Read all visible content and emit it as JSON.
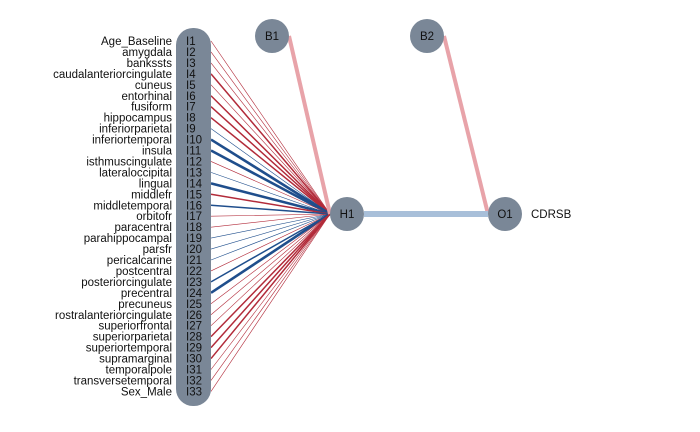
{
  "colors": {
    "node_fill": "#7a8797",
    "positive_edge": "#b22b3a",
    "negative_edge": "#1f4e8c",
    "bias_edge": "#e8a3a9",
    "hidden_output_edge": "#a8bfd9",
    "background": "#ffffff"
  },
  "input_labels": [
    "Age_Baseline",
    "amygdala",
    "bankssts",
    "caudalanteriorcingulate",
    "cuneus",
    "entorhinal",
    "fusiform",
    "hippocampus",
    "inferiorparietal",
    "inferiortemporal",
    "insula",
    "isthmuscingulate",
    "lateraloccipital",
    "lingual",
    "middlefr",
    "middletemporal",
    "orbitofr",
    "paracentral",
    "parahippocampal",
    "parsfr",
    "pericalcarine",
    "postcentral",
    "posteriorcingulate",
    "precentral",
    "precuneus",
    "rostralanteriorcingulate",
    "superiorfrontal",
    "superiorparietal",
    "superiortemporal",
    "supramarginal",
    "temporalpole",
    "transversetemporal",
    "Sex_Male"
  ],
  "input_nodes": [
    "I1",
    "I2",
    "I3",
    "I4",
    "I5",
    "I6",
    "I7",
    "I8",
    "I9",
    "I10",
    "I11",
    "I12",
    "I13",
    "I14",
    "I15",
    "I16",
    "I17",
    "I18",
    "I19",
    "I20",
    "I21",
    "I22",
    "I23",
    "I24",
    "I25",
    "I26",
    "I27",
    "I28",
    "I29",
    "I30",
    "I31",
    "I32",
    "I33"
  ],
  "hidden_node": "H1",
  "output_node": "O1",
  "output_label": "CDRSB",
  "bias_nodes": [
    "B1",
    "B2"
  ],
  "edges": {
    "input_to_hidden": [
      {
        "from": "I1",
        "sign": "positive",
        "strength": 1
      },
      {
        "from": "I2",
        "sign": "positive",
        "strength": 1
      },
      {
        "from": "I3",
        "sign": "positive",
        "strength": 1
      },
      {
        "from": "I4",
        "sign": "positive",
        "strength": 2
      },
      {
        "from": "I5",
        "sign": "positive",
        "strength": 1
      },
      {
        "from": "I6",
        "sign": "positive",
        "strength": 2
      },
      {
        "from": "I7",
        "sign": "positive",
        "strength": 2
      },
      {
        "from": "I8",
        "sign": "positive",
        "strength": 2
      },
      {
        "from": "I9",
        "sign": "negative",
        "strength": 1
      },
      {
        "from": "I10",
        "sign": "negative",
        "strength": 3
      },
      {
        "from": "I11",
        "sign": "negative",
        "strength": 3
      },
      {
        "from": "I12",
        "sign": "positive",
        "strength": 1
      },
      {
        "from": "I13",
        "sign": "negative",
        "strength": 1
      },
      {
        "from": "I14",
        "sign": "negative",
        "strength": 3
      },
      {
        "from": "I15",
        "sign": "positive",
        "strength": 2
      },
      {
        "from": "I16",
        "sign": "negative",
        "strength": 2
      },
      {
        "from": "I17",
        "sign": "positive",
        "strength": 1
      },
      {
        "from": "I18",
        "sign": "positive",
        "strength": 1
      },
      {
        "from": "I19",
        "sign": "negative",
        "strength": 1
      },
      {
        "from": "I20",
        "sign": "negative",
        "strength": 1
      },
      {
        "from": "I21",
        "sign": "negative",
        "strength": 1
      },
      {
        "from": "I22",
        "sign": "positive",
        "strength": 1
      },
      {
        "from": "I23",
        "sign": "negative",
        "strength": 2
      },
      {
        "from": "I24",
        "sign": "negative",
        "strength": 3
      },
      {
        "from": "I25",
        "sign": "positive",
        "strength": 1
      },
      {
        "from": "I26",
        "sign": "positive",
        "strength": 1
      },
      {
        "from": "I27",
        "sign": "positive",
        "strength": 1
      },
      {
        "from": "I28",
        "sign": "positive",
        "strength": 2
      },
      {
        "from": "I29",
        "sign": "positive",
        "strength": 2
      },
      {
        "from": "I30",
        "sign": "positive",
        "strength": 2
      },
      {
        "from": "I31",
        "sign": "positive",
        "strength": 1
      },
      {
        "from": "I32",
        "sign": "positive",
        "strength": 1
      },
      {
        "from": "I33",
        "sign": "positive",
        "strength": 1
      }
    ],
    "bias_to_hidden": {
      "from": "B1",
      "sign": "positive",
      "strength": 4
    },
    "bias_to_output": {
      "from": "B2",
      "sign": "positive",
      "strength": 4
    },
    "hidden_to_output": {
      "from": "H1",
      "sign": "negative",
      "strength": 6
    }
  }
}
